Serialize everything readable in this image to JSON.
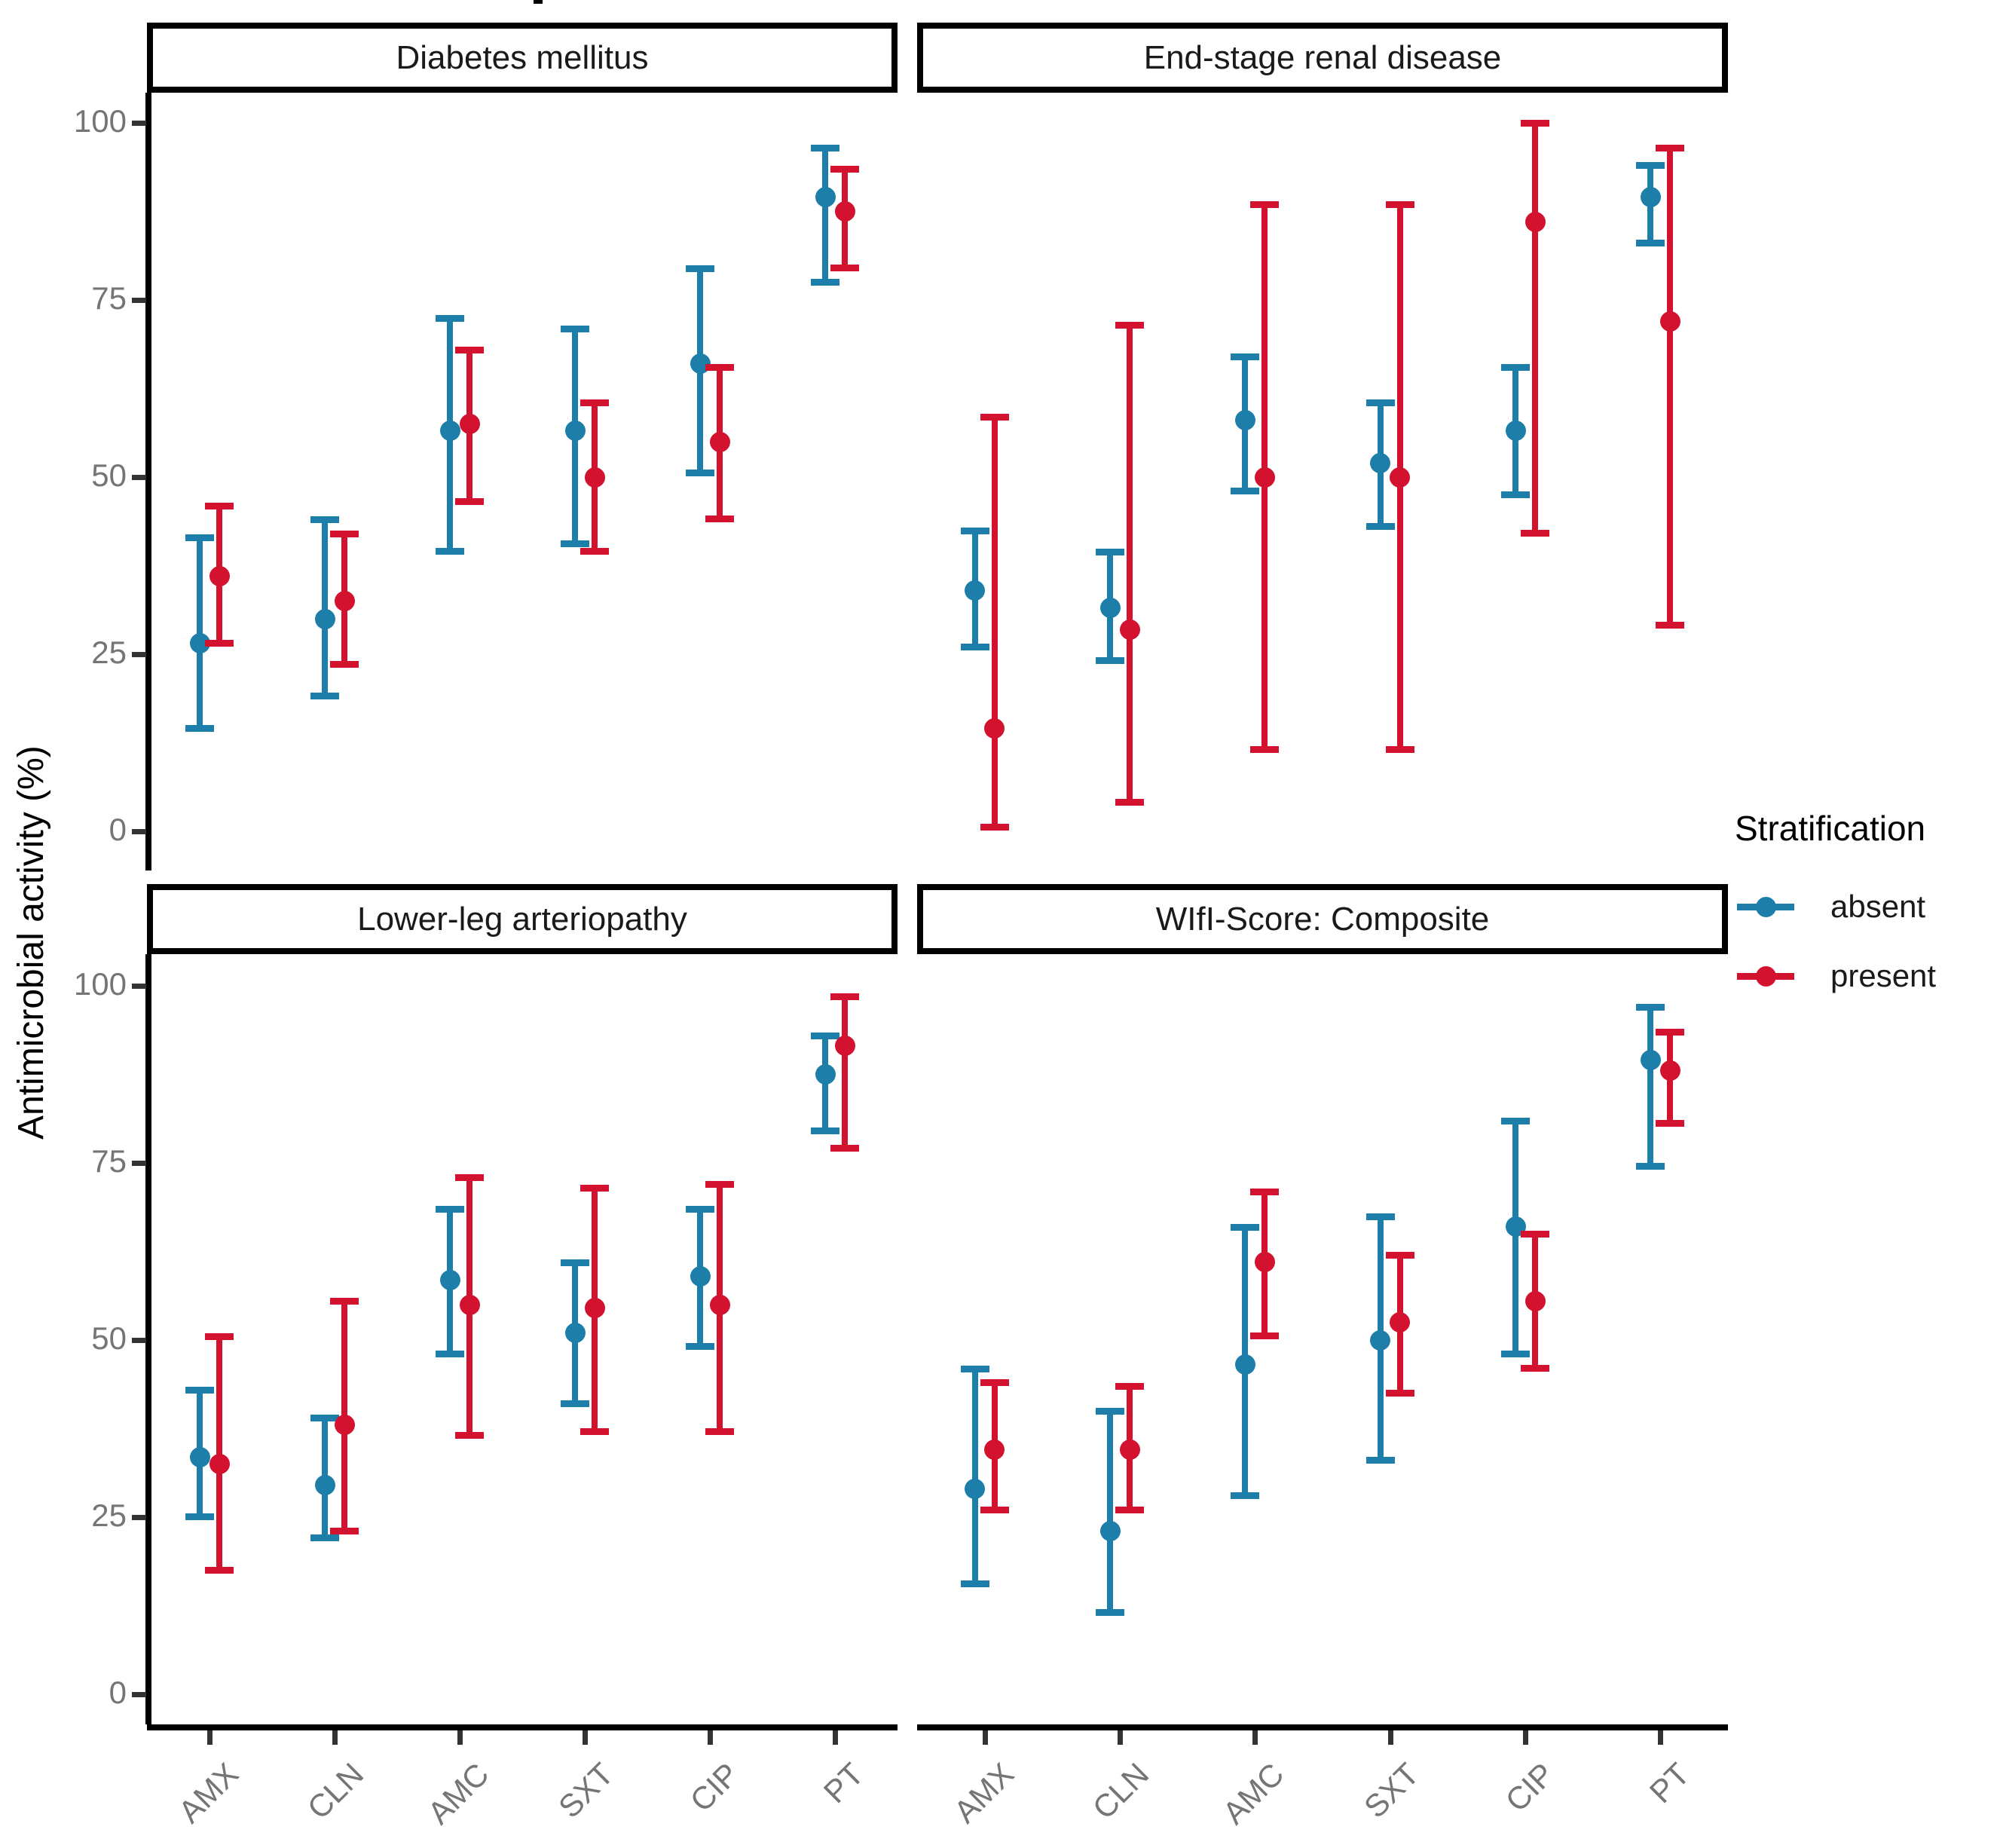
{
  "y_axis": {
    "title": "Antimicrobial activity (%)",
    "ticks": [
      100,
      75,
      50,
      25,
      0
    ]
  },
  "x_axis": {
    "labels": [
      "AMX",
      "CLN",
      "AMC",
      "SXT",
      "CIP",
      "PT"
    ]
  },
  "legend": {
    "title": "Stratification",
    "items": [
      {
        "label": "absent",
        "color": "#1d7eaa"
      },
      {
        "label": "present",
        "color": "#d2122f"
      }
    ]
  },
  "chart_data": {
    "type": "pointrange",
    "categories": [
      "AMX",
      "CLN",
      "AMC",
      "SXT",
      "CIP",
      "PT"
    ],
    "ylabel": "Antimicrobial activity (%)",
    "ylim": [
      0,
      100
    ],
    "grid": false,
    "legend_position": "right",
    "facets": [
      {
        "title": "Diabetes mellitus",
        "series": [
          {
            "name": "absent",
            "color": "#1d7eaa",
            "points": [
              {
                "x": "AMX",
                "y": 26.5,
                "lo": 14.5,
                "hi": 41.5
              },
              {
                "x": "CLN",
                "y": 30,
                "lo": 19,
                "hi": 44
              },
              {
                "x": "AMC",
                "y": 56.5,
                "lo": 39.5,
                "hi": 72.5
              },
              {
                "x": "SXT",
                "y": 56.5,
                "lo": 40.5,
                "hi": 71
              },
              {
                "x": "CIP",
                "y": 66,
                "lo": 50.5,
                "hi": 79.5
              },
              {
                "x": "PT",
                "y": 89.5,
                "lo": 77.5,
                "hi": 96.5
              }
            ]
          },
          {
            "name": "present",
            "color": "#d2122f",
            "points": [
              {
                "x": "AMX",
                "y": 36,
                "lo": 26.5,
                "hi": 46
              },
              {
                "x": "CLN",
                "y": 32.5,
                "lo": 23.5,
                "hi": 42
              },
              {
                "x": "AMC",
                "y": 57.5,
                "lo": 46.5,
                "hi": 68
              },
              {
                "x": "SXT",
                "y": 50,
                "lo": 39.5,
                "hi": 60.5
              },
              {
                "x": "CIP",
                "y": 55,
                "lo": 44,
                "hi": 65.5
              },
              {
                "x": "PT",
                "y": 87.5,
                "lo": 79.5,
                "hi": 93.5
              }
            ]
          }
        ]
      },
      {
        "title": "End-stage renal disease",
        "series": [
          {
            "name": "absent",
            "color": "#1d7eaa",
            "points": [
              {
                "x": "AMX",
                "y": 34,
                "lo": 26,
                "hi": 42.5
              },
              {
                "x": "CLN",
                "y": 31.5,
                "lo": 24,
                "hi": 39.5
              },
              {
                "x": "AMC",
                "y": 58,
                "lo": 48,
                "hi": 67
              },
              {
                "x": "SXT",
                "y": 52,
                "lo": 43,
                "hi": 60.5
              },
              {
                "x": "CIP",
                "y": 56.5,
                "lo": 47.5,
                "hi": 65.5
              },
              {
                "x": "PT",
                "y": 89.5,
                "lo": 83,
                "hi": 94
              }
            ]
          },
          {
            "name": "present",
            "color": "#d2122f",
            "points": [
              {
                "x": "AMX",
                "y": 14.5,
                "lo": 0.5,
                "hi": 58.5
              },
              {
                "x": "CLN",
                "y": 28.5,
                "lo": 4,
                "hi": 71.5
              },
              {
                "x": "AMC",
                "y": 50,
                "lo": 11.5,
                "hi": 88.5
              },
              {
                "x": "SXT",
                "y": 50,
                "lo": 11.5,
                "hi": 88.5
              },
              {
                "x": "CIP",
                "y": 86,
                "lo": 42,
                "hi": 100
              },
              {
                "x": "PT",
                "y": 72,
                "lo": 29,
                "hi": 96.5
              }
            ]
          }
        ]
      },
      {
        "title": "Lower-leg arteriopathy",
        "series": [
          {
            "name": "absent",
            "color": "#1d7eaa",
            "points": [
              {
                "x": "AMX",
                "y": 33.5,
                "lo": 25,
                "hi": 43
              },
              {
                "x": "CLN",
                "y": 29.5,
                "lo": 22,
                "hi": 39
              },
              {
                "x": "AMC",
                "y": 58.5,
                "lo": 48,
                "hi": 68.5
              },
              {
                "x": "SXT",
                "y": 51,
                "lo": 41,
                "hi": 61
              },
              {
                "x": "CIP",
                "y": 59,
                "lo": 49,
                "hi": 68.5
              },
              {
                "x": "PT",
                "y": 87.5,
                "lo": 79.5,
                "hi": 93
              }
            ]
          },
          {
            "name": "present",
            "color": "#d2122f",
            "points": [
              {
                "x": "AMX",
                "y": 32.5,
                "lo": 17.5,
                "hi": 50.5
              },
              {
                "x": "CLN",
                "y": 38,
                "lo": 23,
                "hi": 55.5
              },
              {
                "x": "AMC",
                "y": 55,
                "lo": 36.5,
                "hi": 73
              },
              {
                "x": "SXT",
                "y": 54.5,
                "lo": 37,
                "hi": 71.5
              },
              {
                "x": "CIP",
                "y": 55,
                "lo": 37,
                "hi": 72
              },
              {
                "x": "PT",
                "y": 91.5,
                "lo": 77,
                "hi": 98.5
              }
            ]
          }
        ]
      },
      {
        "title": "WIfI-Score: Composite",
        "series": [
          {
            "name": "absent",
            "color": "#1d7eaa",
            "points": [
              {
                "x": "AMX",
                "y": 29,
                "lo": 15.5,
                "hi": 46
              },
              {
                "x": "CLN",
                "y": 23,
                "lo": 11.5,
                "hi": 40
              },
              {
                "x": "AMC",
                "y": 46.5,
                "lo": 28,
                "hi": 66
              },
              {
                "x": "SXT",
                "y": 50,
                "lo": 33,
                "hi": 67.5
              },
              {
                "x": "CIP",
                "y": 66,
                "lo": 48,
                "hi": 81
              },
              {
                "x": "PT",
                "y": 89.5,
                "lo": 74.5,
                "hi": 97
              }
            ]
          },
          {
            "name": "present",
            "color": "#d2122f",
            "points": [
              {
                "x": "AMX",
                "y": 34.5,
                "lo": 26,
                "hi": 44
              },
              {
                "x": "CLN",
                "y": 34.5,
                "lo": 26,
                "hi": 43.5
              },
              {
                "x": "AMC",
                "y": 61,
                "lo": 50.5,
                "hi": 71
              },
              {
                "x": "SXT",
                "y": 52.5,
                "lo": 42.5,
                "hi": 62
              },
              {
                "x": "CIP",
                "y": 55.5,
                "lo": 46,
                "hi": 65
              },
              {
                "x": "PT",
                "y": 88,
                "lo": 80.5,
                "hi": 93.5
              }
            ]
          }
        ]
      }
    ]
  }
}
